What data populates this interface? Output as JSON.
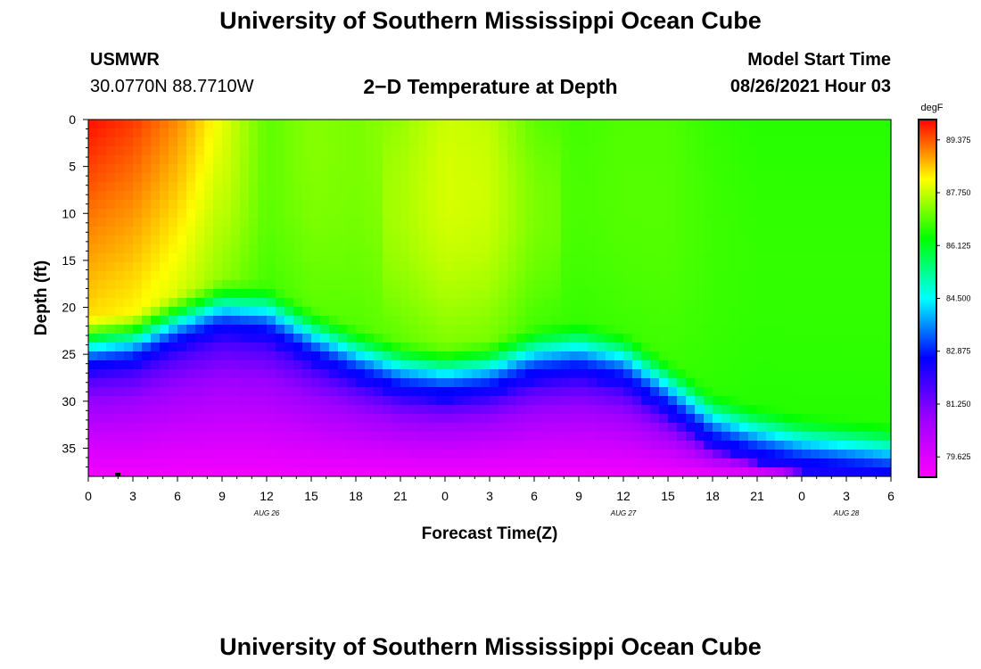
{
  "header": {
    "title_top": "University of Southern Mississippi Ocean Cube",
    "title_bottom": "University of Southern Mississippi Ocean Cube",
    "station": "USMWR",
    "coords": "30.0770N  88.7710W",
    "plot_title": "2−D Temperature at Depth",
    "model_label": "Model Start Time",
    "model_time": "08/26/2021 Hour 03"
  },
  "chart_data": {
    "type": "heatmap",
    "title": "2−D Temperature at Depth",
    "xlabel": "Forecast Time(Z)",
    "ylabel": "Depth (ft)",
    "x_ticks": [
      "0",
      "3",
      "6",
      "9",
      "12",
      "15",
      "18",
      "21",
      "0",
      "3",
      "6",
      "9",
      "12",
      "15",
      "18",
      "21",
      "0",
      "3",
      "6"
    ],
    "x_hours_range": [
      0,
      54
    ],
    "date_labels": [
      {
        "text": "AUG 26",
        "hour": 12
      },
      {
        "text": "AUG 27",
        "hour": 36
      },
      {
        "text": "AUG 28",
        "hour": 51
      }
    ],
    "y_ticks": [
      0,
      5,
      10,
      15,
      20,
      25,
      30,
      35
    ],
    "ylim": [
      0,
      38
    ],
    "colorbar": {
      "unit": "degF",
      "ticks": [
        "89.375",
        "87.750",
        "86.125",
        "84.500",
        "82.875",
        "81.250",
        "79.625"
      ],
      "range": [
        79.0,
        90.0
      ],
      "colors": [
        "#ff00ff",
        "#9b00ff",
        "#0000ff",
        "#00ffff",
        "#00ff00",
        "#ffff00",
        "#ff0000"
      ]
    },
    "temperature_profile": {
      "hours": [
        0,
        3,
        6,
        9,
        12,
        15,
        18,
        21,
        24,
        27,
        30,
        33,
        36,
        39,
        42,
        45,
        48,
        51,
        54
      ],
      "mixed_layer_bottom_ft": [
        25.5,
        25.0,
        23.0,
        21.5,
        22.0,
        24.5,
        26.5,
        28.0,
        28.5,
        28.0,
        26.5,
        26.0,
        27.0,
        30.0,
        33.5,
        35.0,
        36.0,
        36.5,
        37.0
      ],
      "surface_temp_F": [
        89.9,
        89.6,
        89.0,
        88.0,
        87.0,
        87.3,
        87.2,
        87.4,
        87.8,
        87.7,
        87.0,
        86.8,
        86.9,
        86.9,
        86.7,
        86.6,
        86.6,
        86.6,
        86.6
      ],
      "bottom_temp_F": 79.2
    }
  }
}
